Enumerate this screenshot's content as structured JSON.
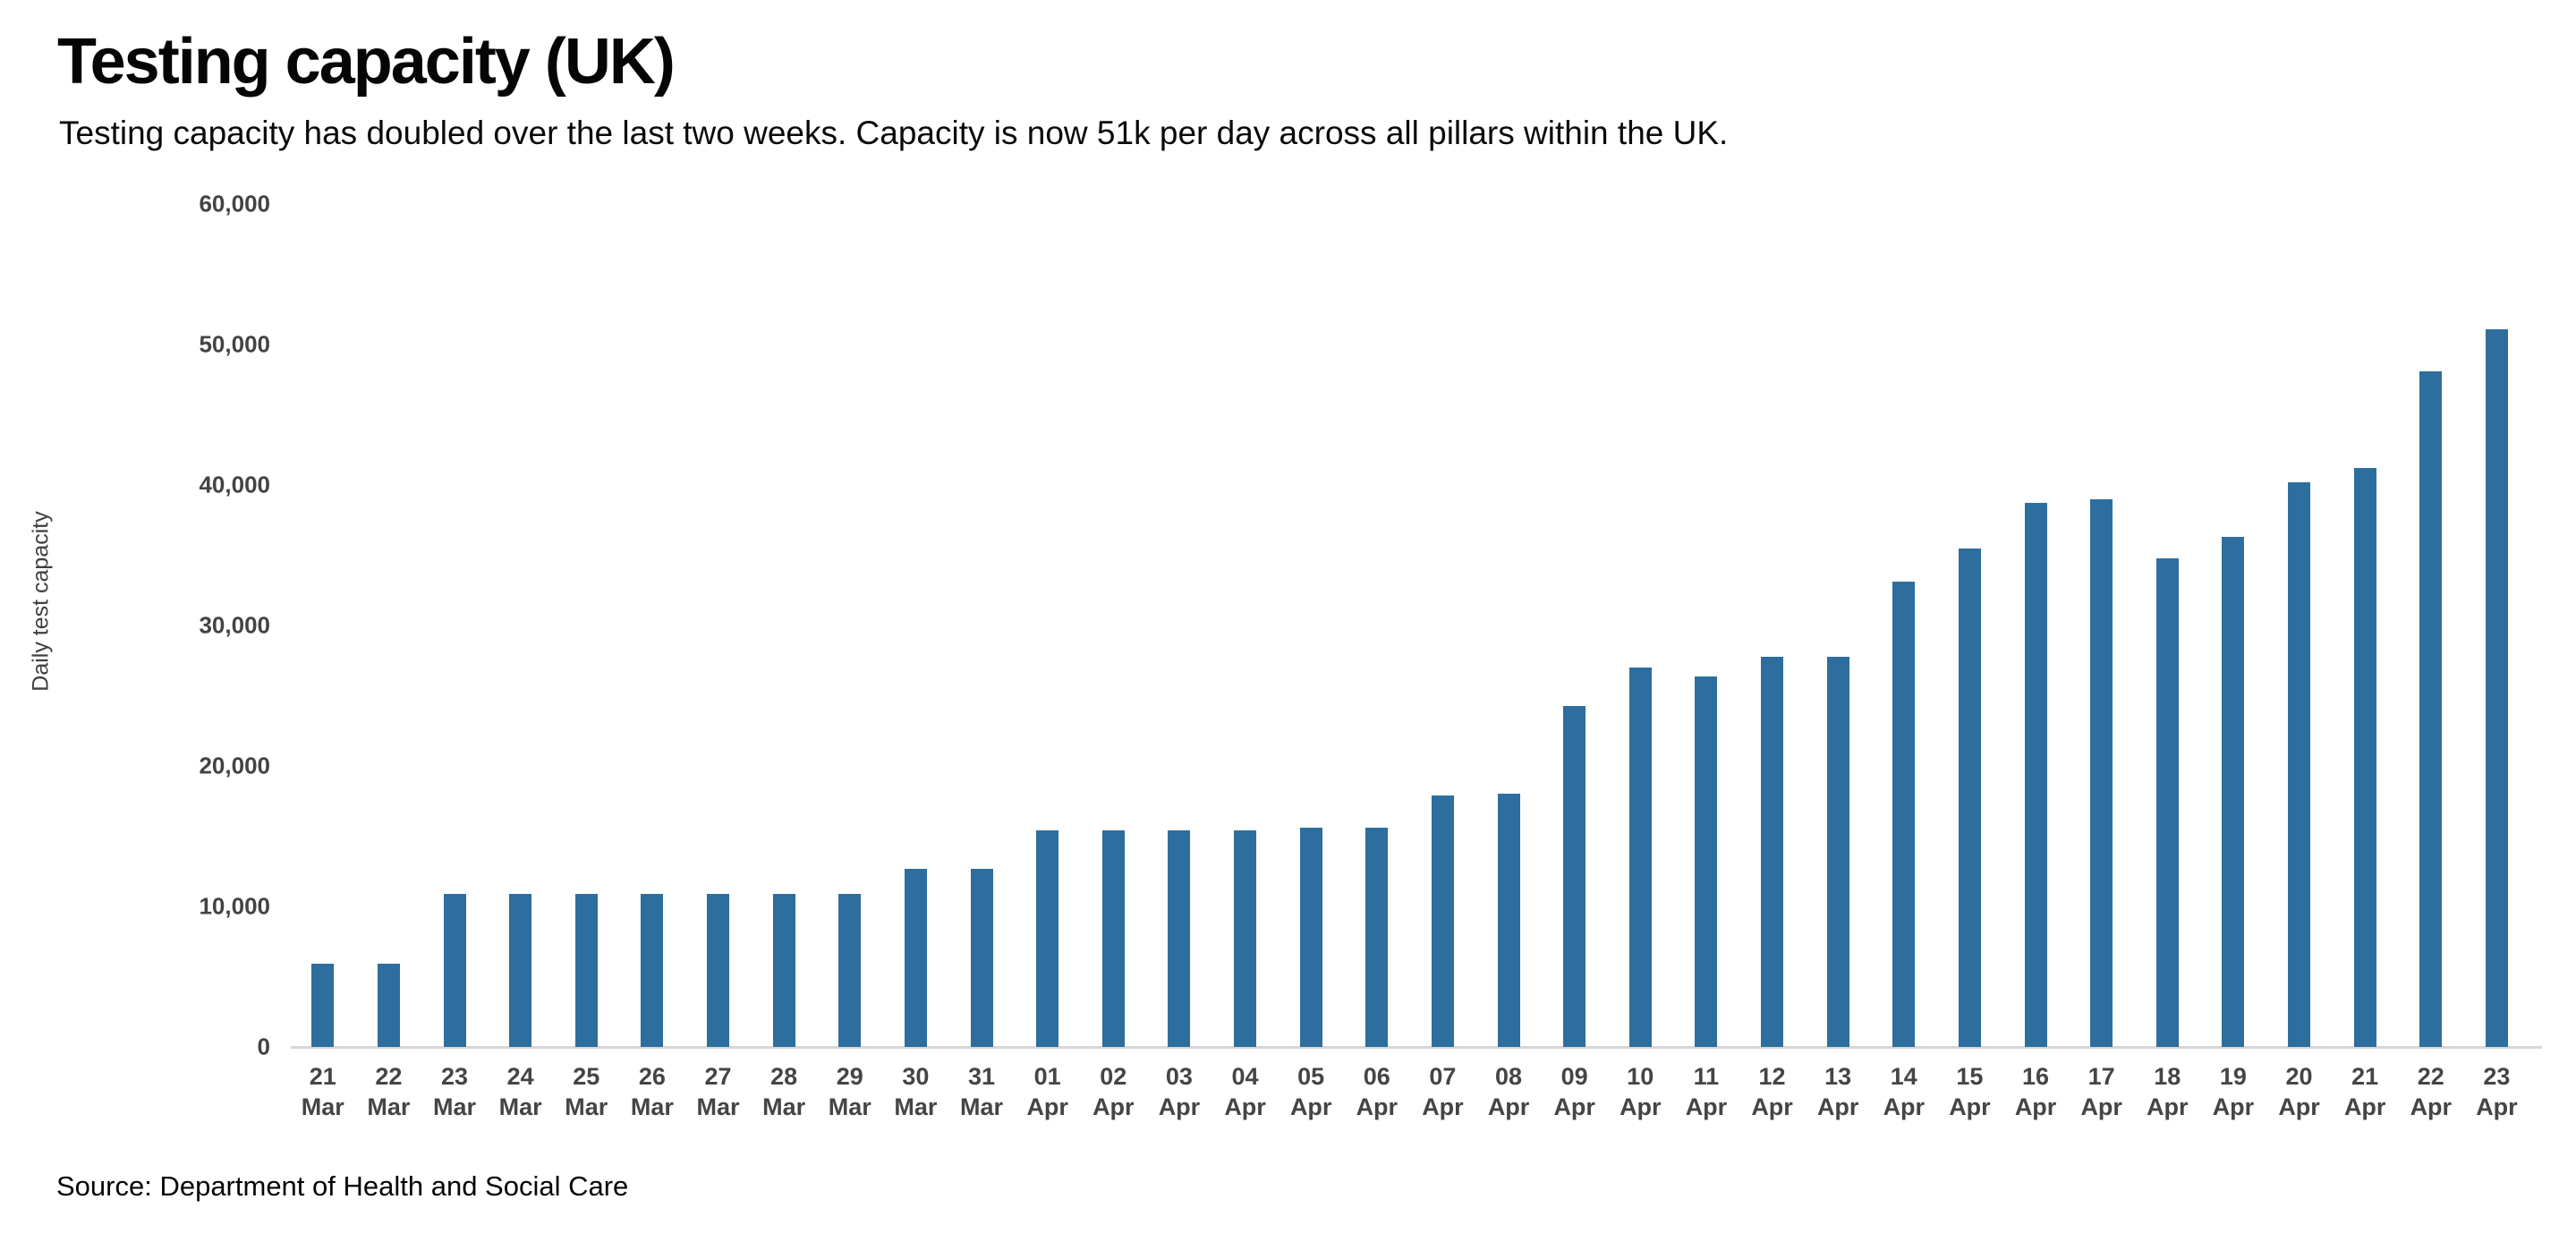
{
  "header": {
    "title": "Testing capacity (UK)",
    "subtitle": "Testing capacity has doubled over the last two weeks. Capacity is now 51k per day across all pillars within the UK."
  },
  "footer": {
    "source": "Source: Department of Health and Social Care"
  },
  "chart_data": {
    "type": "bar",
    "title": "Testing capacity (UK)",
    "xlabel": "",
    "ylabel": "Daily test capacity",
    "ylim": [
      0,
      60000
    ],
    "grid": false,
    "legend": "none",
    "bar_color": "#2d6e9e",
    "axis_line_color": "#d6d6d6",
    "yticks": [
      {
        "value": 0,
        "label": "0"
      },
      {
        "value": 10000,
        "label": "10,000"
      },
      {
        "value": 20000,
        "label": "20,000"
      },
      {
        "value": 30000,
        "label": "30,000"
      },
      {
        "value": 40000,
        "label": "40,000"
      },
      {
        "value": 50000,
        "label": "50,000"
      },
      {
        "value": 60000,
        "label": "60,000"
      }
    ],
    "categories": [
      "21 Mar",
      "22 Mar",
      "23 Mar",
      "24 Mar",
      "25 Mar",
      "26 Mar",
      "27 Mar",
      "28 Mar",
      "29 Mar",
      "30 Mar",
      "31 Mar",
      "01 Apr",
      "02 Apr",
      "03 Apr",
      "04 Apr",
      "05 Apr",
      "06 Apr",
      "07 Apr",
      "08 Apr",
      "09 Apr",
      "10 Apr",
      "11 Apr",
      "12 Apr",
      "13 Apr",
      "14 Apr",
      "15 Apr",
      "16 Apr",
      "17 Apr",
      "18 Apr",
      "19 Apr",
      "20 Apr",
      "21 Apr",
      "22 Apr",
      "23 Apr"
    ],
    "values": [
      5900,
      5900,
      10900,
      10900,
      10900,
      10900,
      10900,
      10900,
      10900,
      12700,
      12700,
      15400,
      15400,
      15400,
      15400,
      15600,
      15600,
      17900,
      18000,
      24300,
      27000,
      26400,
      27800,
      27800,
      33100,
      35500,
      38700,
      39000,
      34800,
      36300,
      40200,
      41200,
      48100,
      51100
    ]
  }
}
